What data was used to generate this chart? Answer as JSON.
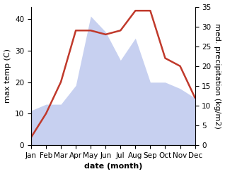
{
  "months": [
    "Jan",
    "Feb",
    "Mar",
    "Apr",
    "May",
    "Jun",
    "Jul",
    "Aug",
    "Sep",
    "Oct",
    "Nov",
    "Dec"
  ],
  "temperature": [
    11,
    13,
    13,
    19,
    41,
    36,
    27,
    34,
    20,
    20,
    18,
    15
  ],
  "precipitation": [
    2,
    8,
    16,
    29,
    29,
    28,
    29,
    34,
    34,
    22,
    20,
    12
  ],
  "temp_fill_color": "#aab8e8",
  "precip_color": "#c0392b",
  "temp_ylim": [
    0,
    44
  ],
  "precip_ylim": [
    0,
    35
  ],
  "xlabel": "date (month)",
  "ylabel_left": "max temp (C)",
  "ylabel_right": "med. precipitation (kg/m2)",
  "label_fontsize": 8,
  "tick_fontsize": 7.5,
  "background_color": "#ffffff"
}
